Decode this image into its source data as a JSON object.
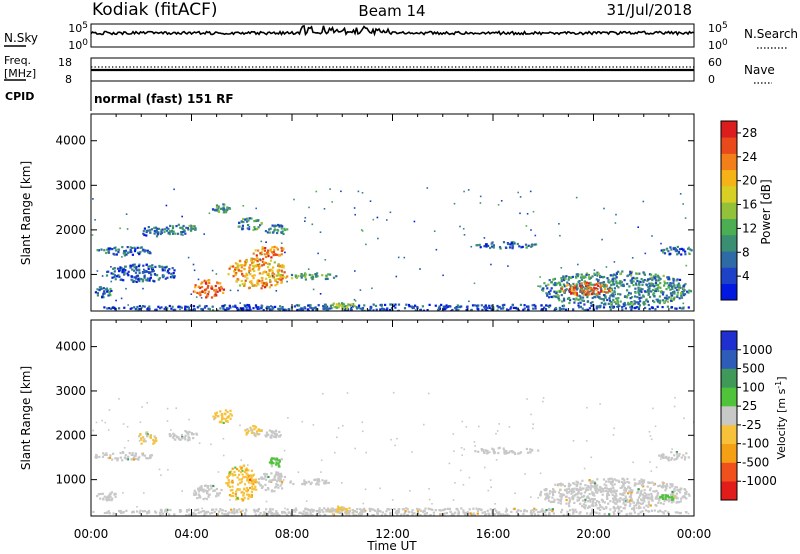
{
  "header": {
    "station": "Kodiak (fitACF)",
    "beam": "Beam 14",
    "date": "31/Jul/2018"
  },
  "top_panels": {
    "nsky": {
      "left_label": "N.Sky",
      "left_ticks": [
        "10^5",
        "10^0"
      ],
      "right_ticks": [
        "10^5",
        "10^0"
      ],
      "right_label": "N.Search"
    },
    "freq": {
      "left_label_1": "Freq.",
      "left_label_2": "[MHz]",
      "left_ticks": [
        "18",
        "8"
      ],
      "right_ticks": [
        "60",
        "0"
      ],
      "right_label": "Nave"
    },
    "cpid": {
      "label": "CPID",
      "text": "normal (fast) 151 RF"
    }
  },
  "chart_data": [
    {
      "type": "heatmap",
      "title": "",
      "xlabel": "Time UT",
      "ylabel": "Slant Range [km]",
      "xlim": [
        "00:00",
        "24:00"
      ],
      "ylim": [
        180,
        4600
      ],
      "x_ticks": [
        "00:00",
        "04:00",
        "08:00",
        "12:00",
        "16:00",
        "20:00",
        "00:00"
      ],
      "y_ticks": [
        1000,
        2000,
        3000,
        4000
      ],
      "colorbar": {
        "label": "Power [dB]",
        "ticks": [
          4,
          8,
          12,
          16,
          20,
          24,
          28
        ],
        "range": [
          0,
          30
        ],
        "colors": [
          "#0018e0",
          "#1d42c8",
          "#2d6aa6",
          "#3a8f72",
          "#4cae52",
          "#93c23a",
          "#d7cf24",
          "#f5b318",
          "#f27f1a",
          "#e84a1c",
          "#dc1d1d"
        ]
      },
      "echo_regions": [
        {
          "time_start": 0.0,
          "time_end": 23.9,
          "range_min": 200,
          "range_max": 350,
          "value": 5
        },
        {
          "time_start": 0.1,
          "time_end": 0.8,
          "range_min": 500,
          "range_max": 750,
          "value": 6
        },
        {
          "time_start": 0.1,
          "time_end": 2.5,
          "range_min": 1450,
          "range_max": 1650,
          "value": 6
        },
        {
          "time_start": 0.5,
          "time_end": 3.5,
          "range_min": 850,
          "range_max": 1250,
          "value": 5
        },
        {
          "time_start": 2.0,
          "time_end": 2.8,
          "range_min": 1850,
          "range_max": 2100,
          "value": 8
        },
        {
          "time_start": 2.8,
          "time_end": 4.3,
          "range_min": 1900,
          "range_max": 2150,
          "value": 9
        },
        {
          "time_start": 4.0,
          "time_end": 5.3,
          "range_min": 500,
          "range_max": 900,
          "value": 26
        },
        {
          "time_start": 4.8,
          "time_end": 5.5,
          "range_min": 2400,
          "range_max": 2600,
          "value": 10
        },
        {
          "time_start": 5.4,
          "time_end": 7.8,
          "range_min": 700,
          "range_max": 1400,
          "value": 21
        },
        {
          "time_start": 6.4,
          "time_end": 7.8,
          "range_min": 1400,
          "range_max": 1650,
          "value": 24
        },
        {
          "time_start": 5.8,
          "time_end": 6.8,
          "range_min": 2000,
          "range_max": 2300,
          "value": 10
        },
        {
          "time_start": 6.9,
          "time_end": 7.8,
          "range_min": 1900,
          "range_max": 2150,
          "value": 9
        },
        {
          "time_start": 7.8,
          "time_end": 9.8,
          "range_min": 900,
          "range_max": 1050,
          "value": 11
        },
        {
          "time_start": 9.5,
          "time_end": 10.5,
          "range_min": 250,
          "range_max": 400,
          "value": 15
        },
        {
          "time_start": 15.2,
          "time_end": 17.8,
          "range_min": 1600,
          "range_max": 1750,
          "value": 6
        },
        {
          "time_start": 17.8,
          "time_end": 23.9,
          "range_min": 300,
          "range_max": 1100,
          "value": 9
        },
        {
          "time_start": 18.7,
          "time_end": 20.7,
          "range_min": 550,
          "range_max": 850,
          "value": 25
        },
        {
          "time_start": 22.5,
          "time_end": 23.9,
          "range_min": 1450,
          "range_max": 1650,
          "value": 7
        }
      ]
    },
    {
      "type": "heatmap",
      "title": "",
      "xlabel": "Time UT",
      "ylabel": "Slant Range [km]",
      "xlim": [
        "00:00",
        "24:00"
      ],
      "ylim": [
        180,
        4600
      ],
      "x_ticks": [
        "00:00",
        "04:00",
        "08:00",
        "12:00",
        "16:00",
        "20:00",
        "00:00"
      ],
      "y_ticks": [
        1000,
        2000,
        3000,
        4000
      ],
      "colorbar": {
        "label": "Velocity [m s^-1]",
        "ticks": [
          "1000",
          "500",
          "100",
          "25",
          "-25",
          "-100",
          "-500",
          "-1000"
        ],
        "range": [
          -1000,
          1000
        ],
        "colors": [
          "#e21b1b",
          "#f0501c",
          "#f5a014",
          "#f7c23a",
          "#c8c8c8",
          "#4fc43a",
          "#3f9a5a",
          "#2d5db8",
          "#1f2fd0"
        ]
      },
      "echo_regions": [
        {
          "time_start": 0.0,
          "time_end": 23.9,
          "range_min": 200,
          "range_max": 380,
          "value": 60
        },
        {
          "time_start": 0.1,
          "time_end": 2.5,
          "range_min": 1450,
          "range_max": 1650,
          "value": 0
        },
        {
          "time_start": 0.2,
          "time_end": 1.0,
          "range_min": 550,
          "range_max": 750,
          "value": 0
        },
        {
          "time_start": 1.8,
          "time_end": 2.6,
          "range_min": 1800,
          "range_max": 2100,
          "value": -150
        },
        {
          "time_start": 3.0,
          "time_end": 4.2,
          "range_min": 1900,
          "range_max": 2150,
          "value": 0
        },
        {
          "time_start": 4.0,
          "time_end": 5.2,
          "range_min": 550,
          "range_max": 900,
          "value": 0
        },
        {
          "time_start": 4.8,
          "time_end": 5.6,
          "range_min": 2300,
          "range_max": 2650,
          "value": -200
        },
        {
          "time_start": 5.3,
          "time_end": 6.6,
          "range_min": 550,
          "range_max": 1350,
          "value": -250
        },
        {
          "time_start": 6.6,
          "time_end": 7.8,
          "range_min": 750,
          "range_max": 1200,
          "value": 0
        },
        {
          "time_start": 7.0,
          "time_end": 7.6,
          "range_min": 1300,
          "range_max": 1550,
          "value": 150
        },
        {
          "time_start": 6.0,
          "time_end": 6.8,
          "range_min": 2000,
          "range_max": 2250,
          "value": -150
        },
        {
          "time_start": 6.8,
          "time_end": 7.6,
          "range_min": 1950,
          "range_max": 2150,
          "value": 0
        },
        {
          "time_start": 7.8,
          "time_end": 9.5,
          "range_min": 900,
          "range_max": 1050,
          "value": 0
        },
        {
          "time_start": 9.3,
          "time_end": 10.4,
          "range_min": 280,
          "range_max": 420,
          "value": -150
        },
        {
          "time_start": 15.2,
          "time_end": 17.8,
          "range_min": 1600,
          "range_max": 1750,
          "value": 0
        },
        {
          "time_start": 17.8,
          "time_end": 23.8,
          "range_min": 350,
          "range_max": 1050,
          "value": 0
        },
        {
          "time_start": 18.8,
          "time_end": 20.8,
          "range_min": 700,
          "range_max": 850,
          "value": -40
        },
        {
          "time_start": 22.5,
          "time_end": 23.9,
          "range_min": 1450,
          "range_max": 1650,
          "value": 0
        },
        {
          "time_start": 22.6,
          "time_end": 23.2,
          "range_min": 550,
          "range_max": 700,
          "value": 150
        }
      ]
    }
  ]
}
